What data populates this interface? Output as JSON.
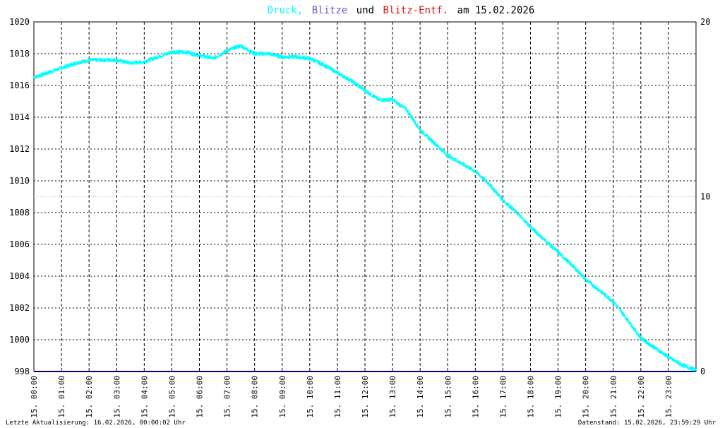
{
  "title": {
    "part1": "Druck,",
    "part2": "Blitze",
    "part3": "und",
    "part4": "Blitz-Entf.",
    "part5": "am 15.02.2026"
  },
  "colors": {
    "pressure": "#00ffff",
    "strikes": "#6a5acd",
    "distance": "#e01010",
    "baseline": "#000080",
    "grid": "#000000"
  },
  "footer": {
    "left": "Letzte Aktualisierung: 16.02.2026, 00:00:02 Uhr",
    "right": "Datenstand: 15.02.2026, 23:59:29 Uhr"
  },
  "chart_data": {
    "type": "line",
    "title": "Druck, Blitze und Blitz-Entf. am 15.02.2026",
    "xlim": [
      0,
      24
    ],
    "ylim": [
      998,
      1020
    ],
    "y2lim": [
      0,
      20
    ],
    "y_ticks": [
      "998",
      "1000",
      "1002",
      "1004",
      "1006",
      "1008",
      "1010",
      "1012",
      "1014",
      "1016",
      "1018",
      "1020"
    ],
    "y2_ticks": [
      "0",
      "10",
      "20"
    ],
    "x_ticks": [
      "15. 00:00",
      "15. 01:00",
      "15. 02:00",
      "15. 03:00",
      "15. 04:00",
      "15. 05:00",
      "15. 06:00",
      "15. 07:00",
      "15. 08:00",
      "15. 09:00",
      "15. 10:00",
      "15. 11:00",
      "15. 12:00",
      "15. 13:00",
      "15. 14:00",
      "15. 15:00",
      "15. 16:00",
      "15. 17:00",
      "15. 18:00",
      "15. 19:00",
      "15. 20:00",
      "15. 21:00",
      "15. 22:00",
      "15. 23:00"
    ],
    "grid": true,
    "series": [
      {
        "name": "Druck",
        "axis": "left",
        "x": [
          0,
          0.5,
          1,
          1.5,
          2,
          2.5,
          3,
          3.5,
          4,
          4.5,
          5,
          5.5,
          6,
          6.5,
          7,
          7.5,
          8,
          8.5,
          9,
          9.5,
          10,
          10.5,
          11,
          11.5,
          12,
          12.5,
          13,
          13.5,
          14,
          14.5,
          15,
          15.5,
          16,
          16.5,
          17,
          17.5,
          18,
          18.5,
          19,
          19.5,
          20,
          20.5,
          21,
          21.5,
          22,
          22.5,
          23,
          23.5,
          24
        ],
        "values": [
          1016.5,
          1016.8,
          1017.1,
          1017.4,
          1017.6,
          1017.6,
          1017.6,
          1017.4,
          1017.5,
          1017.8,
          1018.1,
          1018.1,
          1017.9,
          1017.7,
          1018.2,
          1018.5,
          1018.0,
          1018.0,
          1017.8,
          1017.8,
          1017.7,
          1017.3,
          1016.8,
          1016.3,
          1015.7,
          1015.1,
          1015.1,
          1014.5,
          1013.2,
          1012.4,
          1011.6,
          1011.1,
          1010.6,
          1009.8,
          1008.8,
          1008.0,
          1007.1,
          1006.3,
          1005.5,
          1004.7,
          1003.8,
          1003.1,
          1002.4,
          1001.3,
          1000.1,
          999.5,
          998.9,
          998.4,
          998.1
        ]
      },
      {
        "name": "Blitze",
        "axis": "right",
        "x": [
          0,
          24
        ],
        "values": [
          0,
          0
        ]
      }
    ]
  }
}
